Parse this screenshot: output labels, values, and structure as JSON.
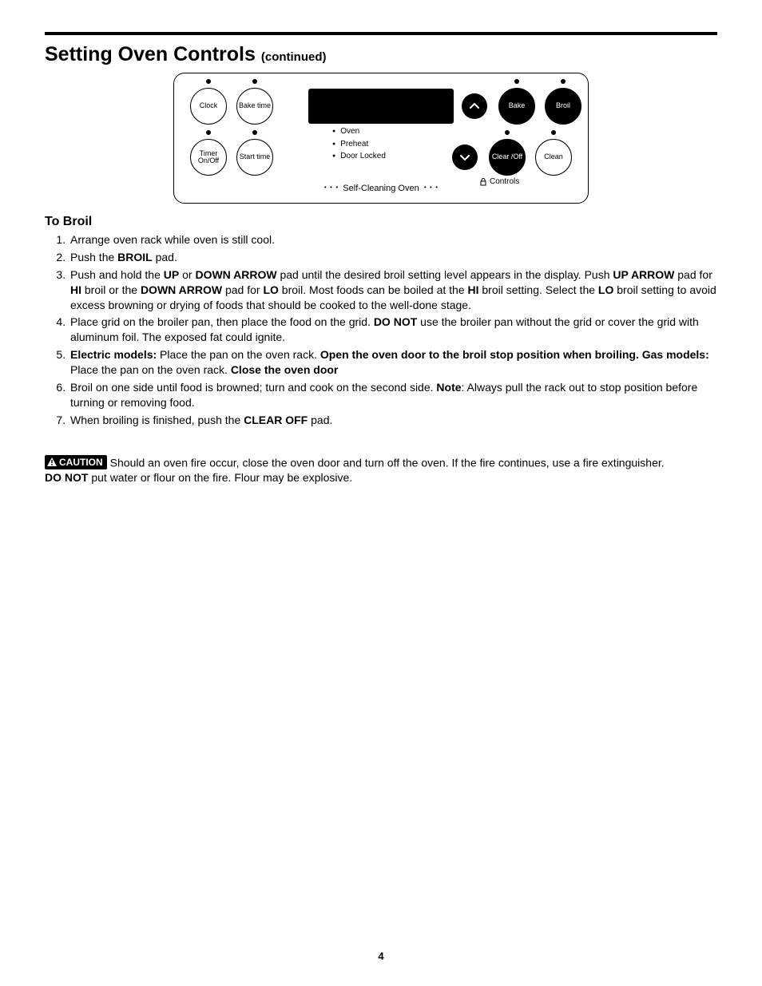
{
  "title": "Setting Oven Controls",
  "title_suffix": "(continued)",
  "panel": {
    "buttons": {
      "clock": "Clock",
      "bake_time": "Bake time",
      "timer": "Timer On/Off",
      "start_time": "Start time",
      "bake": "Bake",
      "broil": "Broil",
      "clear_off": "Clear /Off",
      "clean": "Clean"
    },
    "indicators": [
      "Oven",
      "Preheat",
      "Door Locked"
    ],
    "controls_label": "Controls",
    "footer": "Self-Cleaning Oven"
  },
  "subhead": "To Broil",
  "steps": [
    [
      {
        "t": "Arrange oven rack while oven is still cool."
      }
    ],
    [
      {
        "t": "Push the "
      },
      {
        "b": "BROIL"
      },
      {
        "t": " pad."
      }
    ],
    [
      {
        "t": "Push and hold the "
      },
      {
        "b": "UP"
      },
      {
        "t": " or "
      },
      {
        "b": "DOWN ARROW"
      },
      {
        "t": " pad until the desired broil setting level appears in the display. Push "
      },
      {
        "b": "UP ARROW"
      },
      {
        "t": " pad for "
      },
      {
        "b": "HI"
      },
      {
        "t": " broil or the "
      },
      {
        "b": "DOWN ARROW"
      },
      {
        "t": " pad for "
      },
      {
        "b": "LO"
      },
      {
        "t": " broil. Most foods can be boiled at the "
      },
      {
        "b": "HI"
      },
      {
        "t": " broil setting. Select the "
      },
      {
        "b": "LO"
      },
      {
        "t": " broil setting to avoid excess browning or drying of foods that should be cooked to the well-done stage."
      }
    ],
    [
      {
        "t": "Place grid on the broiler pan, then place the food on the grid. "
      },
      {
        "b": "DO NOT"
      },
      {
        "t": " use the broiler pan without the grid or cover the grid with aluminum foil. The exposed fat could ignite."
      }
    ],
    [
      {
        "b": "Electric models:"
      },
      {
        "t": " Place the pan on the oven rack. "
      },
      {
        "b": "Open the oven door to the broil stop position when broiling. Gas models:"
      },
      {
        "t": " Place the pan on the oven rack. "
      },
      {
        "b": "Close the oven door"
      }
    ],
    [
      {
        "t": "Broil on one side until food is browned; turn and cook on the second side. "
      },
      {
        "b": "Note"
      },
      {
        "t": ": Always pull the rack out to stop position before turning or removing food."
      }
    ],
    [
      {
        "t": "When broiling is finished, push the "
      },
      {
        "b": "CLEAR OFF"
      },
      {
        "t": " pad."
      }
    ]
  ],
  "caution_label": "CAUTION",
  "caution_text_1": "Should an oven fire occur, close the oven door and turn off the oven. If the fire continues, use a fire extinguisher. ",
  "caution_bold": "DO NOT",
  "caution_text_2": " put water or flour on the fire. Flour may be explosive.",
  "page_number": "4",
  "colors": {
    "text": "#000000",
    "bg": "#ffffff"
  }
}
